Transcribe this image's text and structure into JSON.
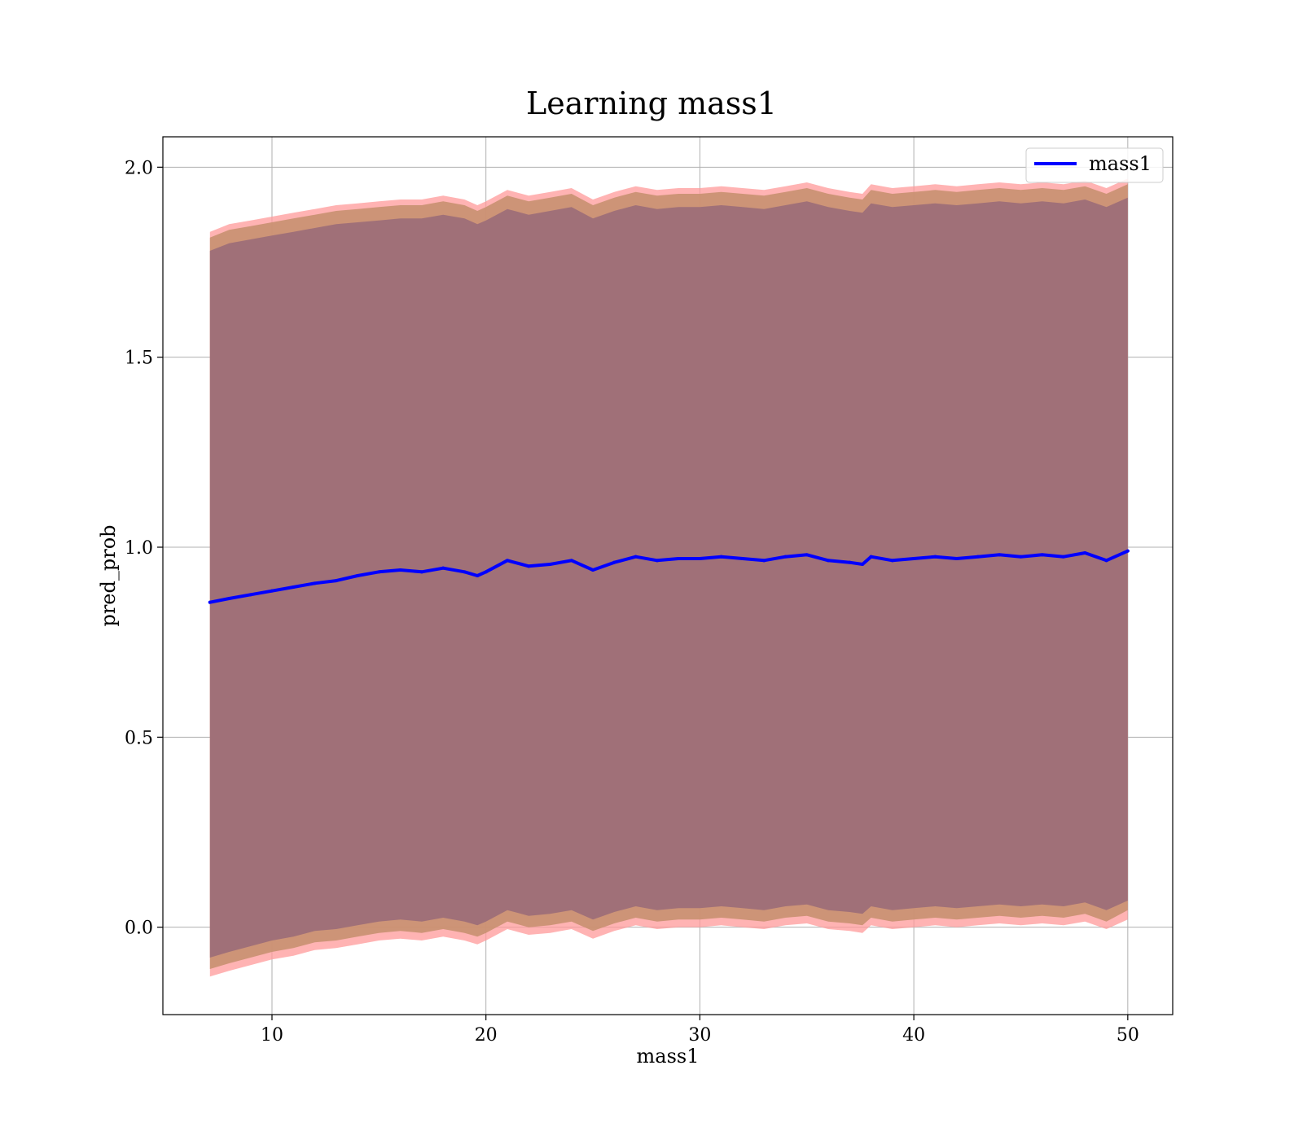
{
  "chart_data": {
    "type": "line",
    "title": "Learning mass1",
    "xlabel": "mass1",
    "ylabel": "pred_prob",
    "xlim": [
      4.9,
      52.1
    ],
    "ylim": [
      -0.23,
      2.08
    ],
    "xticks": [
      10,
      20,
      30,
      40,
      50
    ],
    "xtick_labels": [
      "10",
      "20",
      "30",
      "40",
      "50"
    ],
    "yticks": [
      0.0,
      0.5,
      1.0,
      1.5,
      2.0
    ],
    "ytick_labels": [
      "0.0",
      "0.5",
      "1.0",
      "1.5",
      "2.0"
    ],
    "grid": true,
    "legend": {
      "position": "top-right",
      "entries": [
        "mass1"
      ]
    },
    "colors": {
      "line": "#0000ff",
      "outer_band": "#ff9a9a",
      "inner_band": "#c89070",
      "core_band": "#a07078",
      "grid": "#b0b0b0"
    },
    "x": [
      7.1,
      8,
      9,
      10,
      11,
      12,
      13,
      14,
      15,
      16,
      17,
      18,
      19,
      19.6,
      20,
      21,
      22,
      23,
      24,
      25,
      26,
      27,
      28,
      29,
      30,
      31,
      32,
      33,
      34,
      35,
      36,
      37,
      37.6,
      38,
      39,
      40,
      41,
      42,
      43,
      44,
      45,
      46,
      47,
      48,
      49,
      50
    ],
    "series": [
      {
        "name": "mass1",
        "values": [
          0.855,
          0.865,
          0.875,
          0.885,
          0.895,
          0.905,
          0.912,
          0.925,
          0.935,
          0.94,
          0.935,
          0.945,
          0.935,
          0.925,
          0.935,
          0.965,
          0.95,
          0.955,
          0.965,
          0.94,
          0.96,
          0.975,
          0.965,
          0.97,
          0.97,
          0.975,
          0.97,
          0.965,
          0.975,
          0.98,
          0.965,
          0.96,
          0.955,
          0.975,
          0.965,
          0.97,
          0.975,
          0.97,
          0.975,
          0.98,
          0.975,
          0.98,
          0.975,
          0.985,
          0.965,
          0.99
        ]
      }
    ],
    "bands": [
      {
        "upper": [
          1.83,
          1.85,
          1.86,
          1.87,
          1.88,
          1.89,
          1.9,
          1.905,
          1.91,
          1.915,
          1.915,
          1.925,
          1.915,
          1.9,
          1.91,
          1.94,
          1.925,
          1.935,
          1.945,
          1.915,
          1.935,
          1.95,
          1.94,
          1.945,
          1.945,
          1.95,
          1.945,
          1.94,
          1.95,
          1.96,
          1.945,
          1.935,
          1.93,
          1.955,
          1.945,
          1.95,
          1.955,
          1.95,
          1.955,
          1.96,
          1.955,
          1.96,
          1.955,
          1.965,
          1.945,
          1.97
        ],
        "lower": [
          -0.13,
          -0.115,
          -0.1,
          -0.085,
          -0.075,
          -0.06,
          -0.055,
          -0.045,
          -0.035,
          -0.03,
          -0.035,
          -0.025,
          -0.035,
          -0.045,
          -0.035,
          -0.005,
          -0.02,
          -0.015,
          -0.005,
          -0.03,
          -0.01,
          0.005,
          -0.005,
          0.0,
          0.0,
          0.005,
          0.0,
          -0.005,
          0.005,
          0.01,
          -0.005,
          -0.01,
          -0.015,
          0.005,
          -0.005,
          0.0,
          0.005,
          0.0,
          0.005,
          0.01,
          0.005,
          0.01,
          0.005,
          0.015,
          -0.005,
          0.02
        ]
      },
      {
        "upper": [
          1.815,
          1.835,
          1.845,
          1.855,
          1.865,
          1.875,
          1.885,
          1.89,
          1.895,
          1.9,
          1.9,
          1.91,
          1.9,
          1.885,
          1.895,
          1.925,
          1.91,
          1.92,
          1.93,
          1.9,
          1.92,
          1.935,
          1.925,
          1.93,
          1.93,
          1.935,
          1.93,
          1.925,
          1.935,
          1.945,
          1.93,
          1.92,
          1.915,
          1.94,
          1.93,
          1.935,
          1.94,
          1.935,
          1.94,
          1.945,
          1.94,
          1.945,
          1.94,
          1.95,
          1.93,
          1.955
        ],
        "lower": [
          -0.11,
          -0.095,
          -0.08,
          -0.065,
          -0.055,
          -0.04,
          -0.035,
          -0.025,
          -0.015,
          -0.01,
          -0.015,
          -0.005,
          -0.015,
          -0.025,
          -0.015,
          0.015,
          0.0,
          0.005,
          0.015,
          -0.01,
          0.01,
          0.025,
          0.015,
          0.02,
          0.02,
          0.025,
          0.02,
          0.015,
          0.025,
          0.03,
          0.015,
          0.01,
          0.005,
          0.025,
          0.015,
          0.02,
          0.025,
          0.02,
          0.025,
          0.03,
          0.025,
          0.03,
          0.025,
          0.035,
          0.015,
          0.045
        ]
      },
      {
        "upper": [
          1.78,
          1.8,
          1.81,
          1.82,
          1.83,
          1.84,
          1.85,
          1.855,
          1.86,
          1.865,
          1.865,
          1.875,
          1.865,
          1.85,
          1.86,
          1.89,
          1.875,
          1.885,
          1.895,
          1.865,
          1.885,
          1.9,
          1.89,
          1.895,
          1.895,
          1.9,
          1.895,
          1.89,
          1.9,
          1.91,
          1.895,
          1.885,
          1.88,
          1.905,
          1.895,
          1.9,
          1.905,
          1.9,
          1.905,
          1.91,
          1.905,
          1.91,
          1.905,
          1.915,
          1.895,
          1.92
        ],
        "lower": [
          -0.08,
          -0.065,
          -0.05,
          -0.035,
          -0.025,
          -0.01,
          -0.005,
          0.005,
          0.015,
          0.02,
          0.015,
          0.025,
          0.015,
          0.005,
          0.015,
          0.045,
          0.03,
          0.035,
          0.045,
          0.02,
          0.04,
          0.055,
          0.045,
          0.05,
          0.05,
          0.055,
          0.05,
          0.045,
          0.055,
          0.06,
          0.045,
          0.04,
          0.035,
          0.055,
          0.045,
          0.05,
          0.055,
          0.05,
          0.055,
          0.06,
          0.055,
          0.06,
          0.055,
          0.065,
          0.045,
          0.07
        ]
      }
    ]
  }
}
